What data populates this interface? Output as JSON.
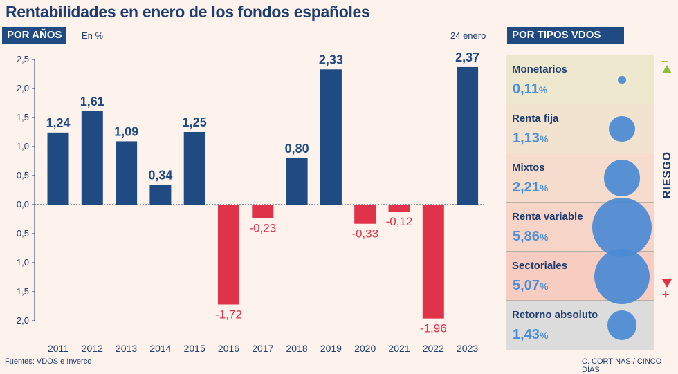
{
  "title": "Rentabilidades en enero de los fondos españoles",
  "left_tag": "POR AÑOS",
  "unit_note": "En %",
  "date_note": "24 enero",
  "right_tag": "POR TIPOS VDOS",
  "risk_label": "RIESGO",
  "risk_minus": "–",
  "risk_plus": "+",
  "footer_left": "Fuentes: VDOS e Inverco",
  "footer_right": "C. CORTINAS / CINCO DÍAS",
  "chart_data": {
    "type": "bar",
    "categories": [
      "2011",
      "2012",
      "2013",
      "2014",
      "2015",
      "2016",
      "2017",
      "2018",
      "2019",
      "2020",
      "2021",
      "2022",
      "2023"
    ],
    "values": [
      1.24,
      1.61,
      1.09,
      0.34,
      1.25,
      -1.72,
      -0.23,
      0.8,
      2.33,
      -0.33,
      -0.12,
      -1.96,
      2.37
    ],
    "value_labels": [
      "1,24",
      "1,61",
      "1,09",
      "0,34",
      "1,25",
      "-1,72",
      "-0,23",
      "0,80",
      "2,33",
      "-0,33",
      "-0,12",
      "-1,96",
      "2,37"
    ],
    "yticks": [
      "2,5",
      "2,0",
      "1,5",
      "1,0",
      "0,5",
      "0,0",
      "-0,5",
      "-1,0",
      "-1,5",
      "-2,0"
    ],
    "ylim": [
      -2.0,
      2.5
    ],
    "grid": false,
    "colors": {
      "positive": "#1f4a82",
      "negative": "#e03349"
    }
  },
  "fund_types": [
    {
      "name": "Monetarios",
      "value": 0.11,
      "label": "0,11",
      "pct": "%",
      "bg": "#eee8cf"
    },
    {
      "name": "Renta fija",
      "value": 1.13,
      "label": "1,13",
      "pct": "%",
      "bg": "#f1e3cf"
    },
    {
      "name": "Mixtos",
      "value": 2.21,
      "label": "2,21",
      "pct": "%",
      "bg": "#f5dccd"
    },
    {
      "name": "Renta variable",
      "value": 5.86,
      "label": "5,86",
      "pct": "%",
      "bg": "#f7d4c8"
    },
    {
      "name": "Sectoriales",
      "value": 5.07,
      "label": "5,07",
      "pct": "%",
      "bg": "#f7cdc2"
    },
    {
      "name": "Retorno absoluto",
      "value": 1.43,
      "label": "1,43",
      "pct": "%",
      "bg": "#dcdcdc"
    }
  ]
}
